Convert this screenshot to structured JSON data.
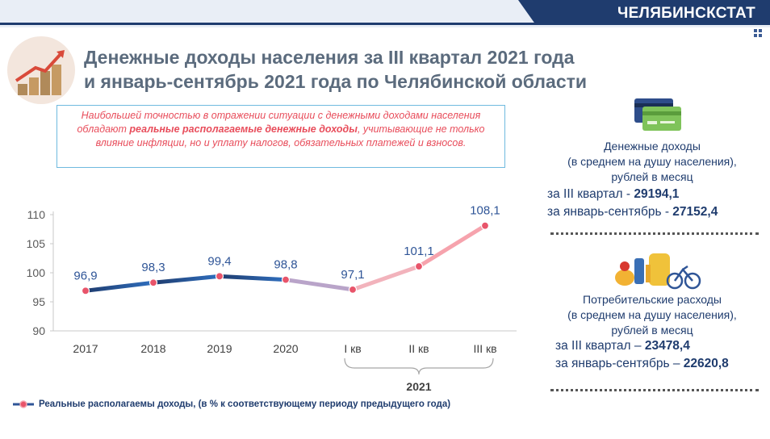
{
  "brand": "ЧЕЛЯБИНСКСТАТ",
  "title_line1": "Денежные доходы населения за III квартал 2021 года",
  "title_line2": "и январь-сентябрь 2021 года  по Челябинской области",
  "note": {
    "part1": "Наибольшей точностью в отражении ситуации с денежными доходами населения обладают ",
    "bold": "реальные располагаемые денежные доходы",
    "part2": ", учитывающие не только влияние инфляции, но и уплату налогов, обязательных платежей и взносов."
  },
  "income": {
    "line1": "Денежные доходы",
    "line2": "(в среднем на душу населения),",
    "line3": "рублей в месяц",
    "q3_label": "за III квартал - ",
    "q3_value": "29194,1",
    "ytd_label": "за январь-сентябрь - ",
    "ytd_value": "27152,4"
  },
  "expenses": {
    "line1": "Потребительские расходы",
    "line2": "(в среднем на душу населения),",
    "line3": "рублей в месяц",
    "q3_label": "за III квартал – ",
    "q3_value": "23478,4",
    "ytd_label": "за январь-сентябрь – ",
    "ytd_value": "22620,8"
  },
  "legend_text": "Реальные располагаемы доходы, (в % к соответствующему периоду предыдущего года)",
  "colors": {
    "dark_blue": "#1f3c6e",
    "line_blue": "#2f5597",
    "pink": "#f6a3ad",
    "marker": "#e8546a",
    "red_text": "#e84d5b"
  },
  "chart_data": {
    "type": "line",
    "categories": [
      "2017",
      "2018",
      "2019",
      "2020",
      "I кв",
      "II кв",
      "III кв"
    ],
    "group_label": "2021",
    "group_categories": [
      "I кв",
      "II кв",
      "III кв"
    ],
    "values": [
      96.9,
      98.3,
      99.4,
      98.8,
      97.1,
      101.1,
      108.1
    ],
    "value_labels": [
      "96,9",
      "98,3",
      "99,4",
      "98,8",
      "97,1",
      "101,1",
      "108,1"
    ],
    "y_ticks": [
      "90",
      "95",
      "100",
      "105",
      "110"
    ],
    "y_tick_values": [
      90,
      95,
      100,
      105,
      110
    ],
    "ylim": [
      90,
      110
    ],
    "series_name": "Реальные располагаемы доходы, (в % к соответствующему периоду предыдущего года)"
  }
}
